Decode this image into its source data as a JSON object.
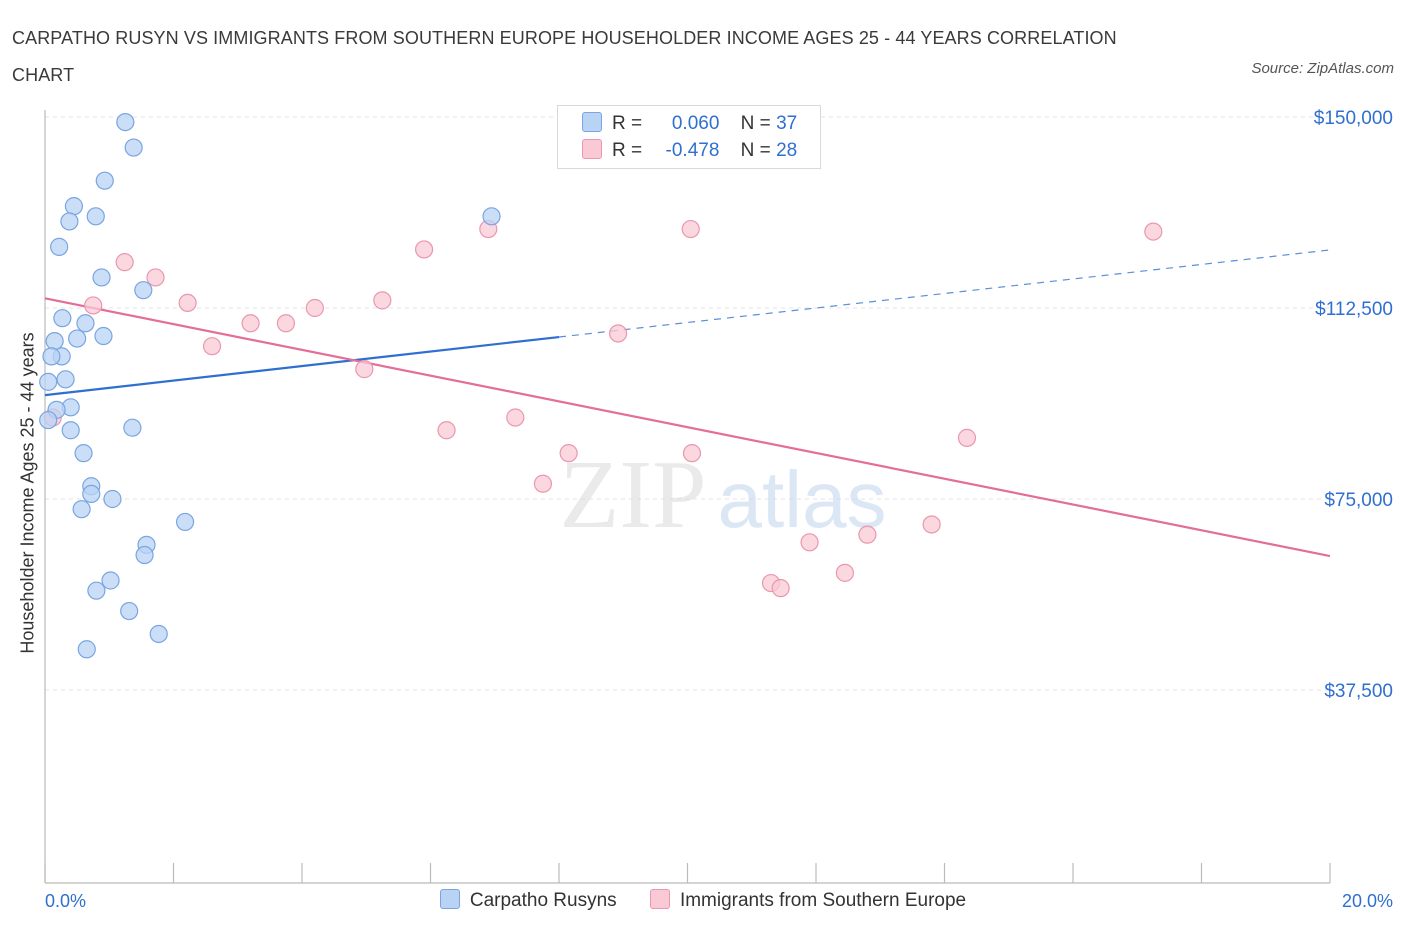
{
  "header": {
    "title": "CARPATHO RUSYN VS IMMIGRANTS FROM SOUTHERN EUROPE HOUSEHOLDER INCOME AGES 25 - 44 YEARS CORRELATION CHART",
    "source": "Source: ZipAtlas.com"
  },
  "stats_legend": {
    "rows": [
      {
        "r_label": "R =",
        "r_value": "0.060",
        "n_label": "N =",
        "n_value": "37"
      },
      {
        "r_label": "R =",
        "r_value": "-0.478",
        "n_label": "N =",
        "n_value": "28"
      }
    ]
  },
  "watermark": {
    "zip": "ZIP",
    "atlas": "atlas"
  },
  "chart_data": {
    "type": "scatter",
    "title": "CARPATHO RUSYN VS IMMIGRANTS FROM SOUTHERN EUROPE HOUSEHOLDER INCOME AGES 25 - 44 YEARS CORRELATION CHART",
    "xlabel": "",
    "ylabel": "Householder Income Ages 25 - 44 years",
    "xlim": [
      0,
      20
    ],
    "ylim": [
      0,
      150000
    ],
    "x_tick_labels": [
      "0.0%",
      "20.0%"
    ],
    "y_tick_labels": [
      "$150,000",
      "$112,500",
      "$75,000",
      "$37,500"
    ],
    "y_ticks": [
      150000,
      112500,
      75000,
      37500
    ],
    "grid": true,
    "legend_position": "bottom",
    "series": [
      {
        "name": "Carpatho Rusyns",
        "color": "#7aa5e0",
        "fill": "#b9d3f5",
        "points": [
          [
            1.25,
            149000
          ],
          [
            1.38,
            144000
          ],
          [
            0.93,
            137500
          ],
          [
            0.45,
            132500
          ],
          [
            0.79,
            130500
          ],
          [
            0.38,
            129500
          ],
          [
            0.22,
            124500
          ],
          [
            0.88,
            118500
          ],
          [
            1.53,
            116000
          ],
          [
            0.27,
            110500
          ],
          [
            0.63,
            109500
          ],
          [
            0.91,
            107000
          ],
          [
            0.5,
            106500
          ],
          [
            0.15,
            106000
          ],
          [
            0.26,
            103000
          ],
          [
            0.1,
            103000
          ],
          [
            0.32,
            98500
          ],
          [
            0.05,
            98000
          ],
          [
            0.4,
            93000
          ],
          [
            0.18,
            92500
          ],
          [
            0.05,
            90500
          ],
          [
            1.36,
            89000
          ],
          [
            0.4,
            88500
          ],
          [
            0.6,
            84000
          ],
          [
            0.72,
            77500
          ],
          [
            0.72,
            76000
          ],
          [
            1.05,
            75000
          ],
          [
            0.57,
            73000
          ],
          [
            2.18,
            70500
          ],
          [
            1.58,
            66000
          ],
          [
            1.55,
            64000
          ],
          [
            1.02,
            59000
          ],
          [
            0.8,
            57000
          ],
          [
            1.31,
            53000
          ],
          [
            1.77,
            48500
          ],
          [
            0.65,
            45500
          ],
          [
            6.95,
            130500
          ]
        ],
        "trend": {
          "x_solid": [
            0,
            8.0
          ],
          "x_dashed": [
            8.0,
            20
          ],
          "slope_line": [
            [
              0,
              95400
            ],
            [
              20,
              123900
            ]
          ]
        }
      },
      {
        "name": "Immigrants from Southern Europe",
        "color": "#ea97ae",
        "fill": "#f9c9d6",
        "points": [
          [
            0.12,
            91000
          ],
          [
            0.75,
            113000
          ],
          [
            1.24,
            121500
          ],
          [
            1.72,
            118500
          ],
          [
            2.22,
            113500
          ],
          [
            2.6,
            105000
          ],
          [
            3.2,
            109500
          ],
          [
            3.75,
            109500
          ],
          [
            4.2,
            112500
          ],
          [
            4.97,
            100500
          ],
          [
            5.25,
            114000
          ],
          [
            5.9,
            124000
          ],
          [
            6.9,
            128000
          ],
          [
            6.25,
            88500
          ],
          [
            7.32,
            91000
          ],
          [
            7.75,
            78000
          ],
          [
            8.15,
            84000
          ],
          [
            8.92,
            107500
          ],
          [
            10.05,
            128000
          ],
          [
            10.07,
            84000
          ],
          [
            11.3,
            58500
          ],
          [
            11.45,
            57500
          ],
          [
            11.9,
            66500
          ],
          [
            12.45,
            60500
          ],
          [
            12.8,
            68000
          ],
          [
            13.8,
            70000
          ],
          [
            14.35,
            87000
          ],
          [
            17.25,
            127500
          ]
        ],
        "trend": {
          "slope_line": [
            [
              0,
              114400
            ],
            [
              20,
              63800
            ]
          ]
        }
      }
    ]
  },
  "bottom_legend": {
    "items": [
      "Carpatho Rusyns",
      "Immigrants from Southern Europe"
    ]
  }
}
